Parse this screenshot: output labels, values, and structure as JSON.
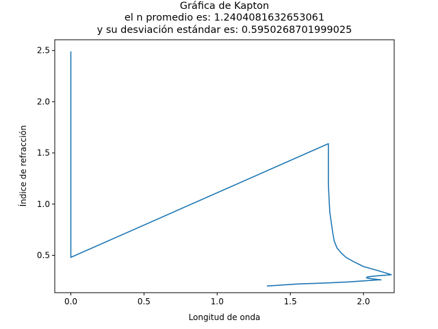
{
  "chart_data": {
    "type": "line",
    "title_lines": [
      "Gráfica de Kapton",
      "el n promedio es: 1.2404081632653061",
      "y su desviación estándar es: 0.5950268701999025"
    ],
    "xlabel": "Longitud de onda",
    "ylabel": "Índice de refracción",
    "xlim": [
      -0.11,
      2.21
    ],
    "ylim": [
      0.135,
      2.605
    ],
    "x_ticks": [
      0.0,
      0.5,
      1.0,
      1.5,
      2.0
    ],
    "x_tick_labels": [
      "0.0",
      "0.5",
      "1.0",
      "1.5",
      "2.0"
    ],
    "y_ticks": [
      0.5,
      1.0,
      1.5,
      2.0,
      2.5
    ],
    "y_tick_labels": [
      "0.5",
      "1.0",
      "1.5",
      "2.0",
      "2.5"
    ],
    "grid": false,
    "series": [
      {
        "color": "#1f77b4",
        "points": [
          [
            0.0,
            2.49
          ],
          [
            0.0,
            2.0
          ],
          [
            0.0,
            1.5
          ],
          [
            0.0,
            1.0
          ],
          [
            0.0,
            0.48
          ],
          [
            1.76,
            1.59
          ],
          [
            1.76,
            1.4
          ],
          [
            1.76,
            1.2
          ],
          [
            1.765,
            1.05
          ],
          [
            1.77,
            0.92
          ],
          [
            1.78,
            0.82
          ],
          [
            1.79,
            0.72
          ],
          [
            1.8,
            0.64
          ],
          [
            1.82,
            0.57
          ],
          [
            1.85,
            0.52
          ],
          [
            1.88,
            0.48
          ],
          [
            1.93,
            0.44
          ],
          [
            2.0,
            0.39
          ],
          [
            2.1,
            0.35
          ],
          [
            2.17,
            0.32
          ],
          [
            2.19,
            0.31
          ],
          [
            2.1,
            0.3
          ],
          [
            2.03,
            0.29
          ],
          [
            2.02,
            0.28
          ],
          [
            2.06,
            0.27
          ],
          [
            2.12,
            0.26
          ],
          [
            2.1,
            0.26
          ],
          [
            2.0,
            0.25
          ],
          [
            1.9,
            0.24
          ],
          [
            1.75,
            0.23
          ],
          [
            1.55,
            0.22
          ],
          [
            1.34,
            0.2
          ]
        ]
      }
    ]
  }
}
